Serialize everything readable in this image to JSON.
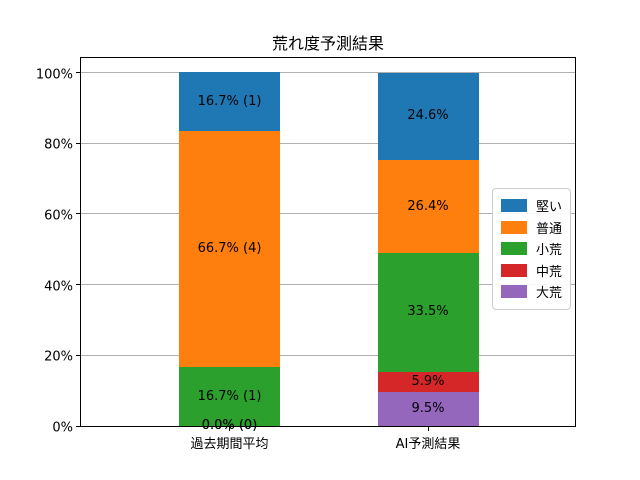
{
  "title": "荒れ度予測結果",
  "colors": {
    "blue": "#1f77b4",
    "orange": "#ff7f0e",
    "green": "#2ca02c",
    "red": "#d62728",
    "purple": "#9467bd",
    "gridline": "#b0b0b0",
    "spine": "#000000",
    "text": "#000000"
  },
  "chart_data": {
    "type": "bar",
    "stacked": true,
    "title": "荒れ度予測結果",
    "xlabel": "",
    "ylabel": "",
    "categories": [
      "過去期間平均",
      "AI予測結果"
    ],
    "series": [
      {
        "name": "大荒",
        "color": "#9467bd",
        "values": [
          0.0,
          9.5
        ],
        "labels": [
          "0.0% (0)",
          "9.5%"
        ]
      },
      {
        "name": "中荒",
        "color": "#d62728",
        "values": [
          0.0,
          5.9
        ],
        "labels": [
          "0.0% (0)",
          "5.9%"
        ]
      },
      {
        "name": "小荒",
        "color": "#2ca02c",
        "values": [
          16.7,
          33.5
        ],
        "labels": [
          "16.7% (1)",
          "33.5%"
        ]
      },
      {
        "name": "普通",
        "color": "#ff7f0e",
        "values": [
          66.7,
          26.4
        ],
        "labels": [
          "66.7% (4)",
          "26.4%"
        ]
      },
      {
        "name": "堅い",
        "color": "#1f77b4",
        "values": [
          16.7,
          24.6
        ],
        "labels": [
          "16.7% (1)",
          "24.6%"
        ]
      }
    ],
    "legend": [
      "堅い",
      "普通",
      "小荒",
      "中荒",
      "大荒"
    ],
    "legend_position": "center right",
    "yticks": [
      {
        "pct": 0,
        "label": "0%"
      },
      {
        "pct": 20,
        "label": "20%"
      },
      {
        "pct": 40,
        "label": "40%"
      },
      {
        "pct": 60,
        "label": "60%"
      },
      {
        "pct": 80,
        "label": "80%"
      },
      {
        "pct": 100,
        "label": "100%"
      }
    ],
    "ylim": [
      0,
      104.7
    ],
    "grid": true
  }
}
